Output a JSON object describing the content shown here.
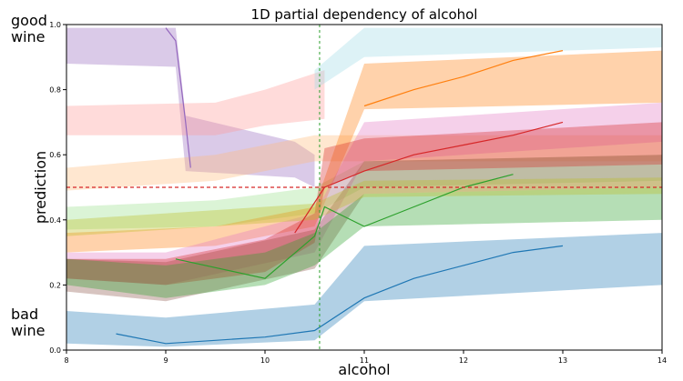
{
  "chart_data": {
    "type": "line",
    "title": "1D partial dependency of alcohol",
    "xlabel": "alcohol",
    "ylabel": "prediction",
    "xlim": [
      8,
      14
    ],
    "ylim": [
      0.0,
      1.0
    ],
    "xticks": [
      "8",
      "9",
      "10",
      "11",
      "12",
      "13",
      "14"
    ],
    "yticks": [
      "0.0",
      "0.2",
      "0.4",
      "0.6",
      "0.8",
      "1.0"
    ],
    "grid": false,
    "threshold": {
      "y": 0.5,
      "color": "#d62728",
      "style": "dashed"
    },
    "vertical_marker": {
      "x": 10.55,
      "color": "#2ca02c",
      "style": "dashed"
    },
    "annotations": {
      "top": "good\nwine",
      "bottom": "bad\nwine"
    },
    "bands": [
      {
        "color": "#9467bd",
        "lower": [
          [
            8,
            0.88
          ],
          [
            9.1,
            0.87
          ],
          [
            9.2,
            0.55
          ],
          [
            10.3,
            0.53
          ],
          [
            10.5,
            0.5
          ]
        ],
        "upper": [
          [
            8,
            0.99
          ],
          [
            9.1,
            0.99
          ],
          [
            9.2,
            0.72
          ],
          [
            10.3,
            0.64
          ],
          [
            10.5,
            0.6
          ]
        ]
      },
      {
        "color": "#ff9896",
        "lower": [
          [
            8,
            0.66
          ],
          [
            9.5,
            0.66
          ],
          [
            10,
            0.69
          ],
          [
            10.6,
            0.71
          ]
        ],
        "upper": [
          [
            8,
            0.75
          ],
          [
            9.5,
            0.76
          ],
          [
            10,
            0.8
          ],
          [
            10.6,
            0.86
          ]
        ]
      },
      {
        "color": "#ffbb78",
        "lower": [
          [
            8,
            0.49
          ],
          [
            9.5,
            0.52
          ],
          [
            10.5,
            0.58
          ],
          [
            14,
            0.58
          ]
        ],
        "upper": [
          [
            8,
            0.56
          ],
          [
            9.5,
            0.6
          ],
          [
            10.5,
            0.66
          ],
          [
            14,
            0.66
          ]
        ]
      },
      {
        "color": "#98df8a",
        "lower": [
          [
            8,
            0.37
          ],
          [
            9.5,
            0.38
          ],
          [
            10.5,
            0.42
          ],
          [
            11,
            0.5
          ],
          [
            14,
            0.52
          ]
        ],
        "upper": [
          [
            8,
            0.44
          ],
          [
            9.5,
            0.46
          ],
          [
            10.5,
            0.5
          ],
          [
            11,
            0.58
          ],
          [
            14,
            0.6
          ]
        ]
      },
      {
        "color": "#ff7f0e",
        "lower": [
          [
            8,
            0.3
          ],
          [
            9.5,
            0.32
          ],
          [
            10.5,
            0.38
          ],
          [
            11,
            0.74
          ],
          [
            14,
            0.76
          ]
        ],
        "upper": [
          [
            8,
            0.36
          ],
          [
            9.5,
            0.38
          ],
          [
            10.5,
            0.44
          ],
          [
            11,
            0.88
          ],
          [
            14,
            0.92
          ]
        ]
      },
      {
        "color": "#9edae5",
        "lower": [
          [
            10.5,
            0.8
          ],
          [
            11,
            0.9
          ],
          [
            14,
            0.93
          ]
        ],
        "upper": [
          [
            10.5,
            0.86
          ],
          [
            11,
            0.99
          ],
          [
            14,
            0.99
          ]
        ]
      },
      {
        "color": "#e377c2",
        "lower": [
          [
            8,
            0.22
          ],
          [
            9,
            0.2
          ],
          [
            10.5,
            0.3
          ],
          [
            11,
            0.58
          ],
          [
            14,
            0.64
          ]
        ],
        "upper": [
          [
            8,
            0.3
          ],
          [
            9,
            0.3
          ],
          [
            10.5,
            0.42
          ],
          [
            11,
            0.7
          ],
          [
            14,
            0.76
          ]
        ]
      },
      {
        "color": "#8c564b",
        "lower": [
          [
            8,
            0.18
          ],
          [
            9,
            0.15
          ],
          [
            10.5,
            0.25
          ],
          [
            11,
            0.48
          ],
          [
            14,
            0.5
          ]
        ],
        "upper": [
          [
            8,
            0.28
          ],
          [
            9,
            0.27
          ],
          [
            10.5,
            0.37
          ],
          [
            11,
            0.58
          ],
          [
            14,
            0.6
          ]
        ]
      },
      {
        "color": "#d62728",
        "lower": [
          [
            8,
            0.22
          ],
          [
            9,
            0.2
          ],
          [
            10,
            0.24
          ],
          [
            10.5,
            0.33
          ],
          [
            10.6,
            0.5
          ],
          [
            11,
            0.55
          ],
          [
            14,
            0.57
          ]
        ],
        "upper": [
          [
            8,
            0.28
          ],
          [
            9,
            0.28
          ],
          [
            10,
            0.34
          ],
          [
            10.5,
            0.42
          ],
          [
            10.6,
            0.62
          ],
          [
            11,
            0.65
          ],
          [
            14,
            0.7
          ]
        ]
      },
      {
        "color": "#2ca02c",
        "lower": [
          [
            8,
            0.2
          ],
          [
            9,
            0.16
          ],
          [
            10,
            0.2
          ],
          [
            10.5,
            0.26
          ],
          [
            11,
            0.38
          ],
          [
            14,
            0.4
          ]
        ],
        "upper": [
          [
            8,
            0.28
          ],
          [
            9,
            0.26
          ],
          [
            10,
            0.3
          ],
          [
            10.5,
            0.36
          ],
          [
            11,
            0.48
          ],
          [
            14,
            0.5
          ]
        ]
      },
      {
        "color": "#bcbd22",
        "lower": [
          [
            8,
            0.35
          ],
          [
            10.5,
            0.4
          ],
          [
            11,
            0.47
          ],
          [
            14,
            0.48
          ]
        ],
        "upper": [
          [
            8,
            0.4
          ],
          [
            10.5,
            0.45
          ],
          [
            11,
            0.52
          ],
          [
            14,
            0.53
          ]
        ]
      },
      {
        "color": "#1f77b4",
        "lower": [
          [
            8,
            0.02
          ],
          [
            9,
            0.01
          ],
          [
            10.5,
            0.03
          ],
          [
            11,
            0.15
          ],
          [
            14,
            0.2
          ]
        ],
        "upper": [
          [
            8,
            0.12
          ],
          [
            9,
            0.1
          ],
          [
            10.5,
            0.14
          ],
          [
            11,
            0.32
          ],
          [
            14,
            0.36
          ]
        ]
      }
    ],
    "lines": [
      {
        "color": "#9467bd",
        "points": [
          [
            9.0,
            0.99
          ],
          [
            9.1,
            0.95
          ],
          [
            9.2,
            0.7
          ],
          [
            9.25,
            0.56
          ]
        ]
      },
      {
        "color": "#d62728",
        "points": [
          [
            10.3,
            0.36
          ],
          [
            10.6,
            0.5
          ],
          [
            11,
            0.55
          ],
          [
            11.5,
            0.6
          ],
          [
            12,
            0.63
          ],
          [
            12.5,
            0.66
          ],
          [
            13,
            0.7
          ]
        ]
      },
      {
        "color": "#ff7f0e",
        "points": [
          [
            11,
            0.75
          ],
          [
            11.5,
            0.8
          ],
          [
            12,
            0.84
          ],
          [
            12.5,
            0.89
          ],
          [
            13,
            0.92
          ]
        ]
      },
      {
        "color": "#2ca02c",
        "points": [
          [
            9.1,
            0.28
          ],
          [
            9.4,
            0.26
          ],
          [
            10,
            0.22
          ],
          [
            10.5,
            0.35
          ],
          [
            10.6,
            0.44
          ],
          [
            11,
            0.38
          ],
          [
            11.5,
            0.44
          ],
          [
            12,
            0.5
          ],
          [
            12.5,
            0.54
          ]
        ]
      },
      {
        "color": "#1f77b4",
        "points": [
          [
            8.5,
            0.05
          ],
          [
            9,
            0.02
          ],
          [
            9.5,
            0.03
          ],
          [
            10,
            0.04
          ],
          [
            10.5,
            0.06
          ],
          [
            11,
            0.16
          ],
          [
            11.5,
            0.22
          ],
          [
            12,
            0.26
          ],
          [
            12.5,
            0.3
          ],
          [
            13,
            0.32
          ]
        ]
      }
    ]
  }
}
